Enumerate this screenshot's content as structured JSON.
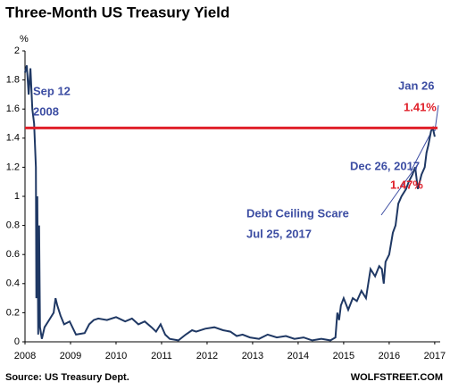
{
  "chart_data": {
    "type": "line",
    "title": "Three-Month US Treasury Yield",
    "y_unit": "%",
    "x": [
      2008.0,
      2008.04,
      2008.08,
      2008.12,
      2008.16,
      2008.2,
      2008.24,
      2008.25,
      2008.27,
      2008.29,
      2008.31,
      2008.33,
      2008.37,
      2008.43,
      2008.53,
      2008.63,
      2008.67,
      2008.71,
      2008.78,
      2008.86,
      2008.98,
      2009.12,
      2009.31,
      2009.41,
      2009.51,
      2009.61,
      2009.8,
      2010,
      2010.2,
      2010.35,
      2010.49,
      2010.63,
      2010.78,
      2010.88,
      2010.98,
      2011.08,
      2011.18,
      2011.37,
      2011.53,
      2011.67,
      2011.76,
      2011.96,
      2012.16,
      2012.35,
      2012.51,
      2012.65,
      2012.78,
      2012.94,
      2013.14,
      2013.33,
      2013.53,
      2013.73,
      2013.92,
      2014.12,
      2014.31,
      2014.51,
      2014.71,
      2014.82,
      2014.86,
      2014.9,
      2014.94,
      2015,
      2015.1,
      2015.2,
      2015.29,
      2015.39,
      2015.49,
      2015.59,
      2015.69,
      2015.78,
      2015.84,
      2015.88,
      2015.92,
      2016,
      2016.08,
      2016.14,
      2016.2,
      2016.27,
      2016.37,
      2016.43,
      2016.51,
      2016.57,
      2016.63,
      2016.71,
      2016.78,
      2016.82,
      2016.86,
      2016.92,
      2016.96,
      2017
    ],
    "series": [
      {
        "name": "3-month yield",
        "color": "#1f3864",
        "values": [
          1.85,
          1.9,
          1.7,
          1.88,
          1.6,
          1.5,
          1.2,
          0.3,
          1.0,
          0.05,
          0.8,
          0.1,
          0.02,
          0.1,
          0.15,
          0.2,
          0.3,
          0.25,
          0.18,
          0.12,
          0.14,
          0.05,
          0.06,
          0.12,
          0.15,
          0.16,
          0.15,
          0.17,
          0.14,
          0.16,
          0.12,
          0.14,
          0.1,
          0.07,
          0.12,
          0.05,
          0.02,
          0.01,
          0.05,
          0.08,
          0.07,
          0.09,
          0.1,
          0.08,
          0.07,
          0.04,
          0.05,
          0.03,
          0.02,
          0.05,
          0.03,
          0.04,
          0.02,
          0.03,
          0.01,
          0.02,
          0.01,
          0.03,
          0.2,
          0.15,
          0.25,
          0.3,
          0.22,
          0.3,
          0.28,
          0.35,
          0.3,
          0.5,
          0.45,
          0.52,
          0.5,
          0.4,
          0.55,
          0.6,
          0.75,
          0.8,
          0.95,
          1.0,
          1.05,
          1.1,
          1.15,
          1.2,
          1.05,
          1.15,
          1.2,
          1.3,
          1.35,
          1.45,
          1.47,
          1.41
        ]
      }
    ],
    "reference_line": {
      "value": 1.47,
      "color": "#e0202a"
    },
    "xlim": [
      2008,
      2017.12
    ],
    "xticks": [
      2008,
      2009,
      2010,
      2011,
      2012,
      2013,
      2014,
      2015,
      2016,
      2017
    ],
    "ylim": [
      0,
      2
    ],
    "yticks": [
      0,
      {
        "value": 0.2,
        "label": "0.2"
      },
      {
        "value": 0.4,
        "label": "0.4"
      },
      {
        "value": 0.6,
        "label": "0.6"
      },
      {
        "value": 0.8,
        "label": "0.8"
      },
      1,
      {
        "value": 1.2,
        "label": "1.2"
      },
      {
        "value": 1.4,
        "label": "1.4"
      },
      {
        "value": 1.6,
        "label": "1.6"
      },
      {
        "value": 1.8,
        "label": "1.8"
      },
      2
    ],
    "annotations": [
      "Sep 12",
      "2008",
      "Jan 26",
      "1.41%",
      "Dec 26, 2017",
      "1.47%",
      "Debt Ceiling Scare",
      "Jul 25, 2017"
    ],
    "source": "Source: US Treasury Dept.",
    "credit": "WOLFSTREET.COM"
  }
}
